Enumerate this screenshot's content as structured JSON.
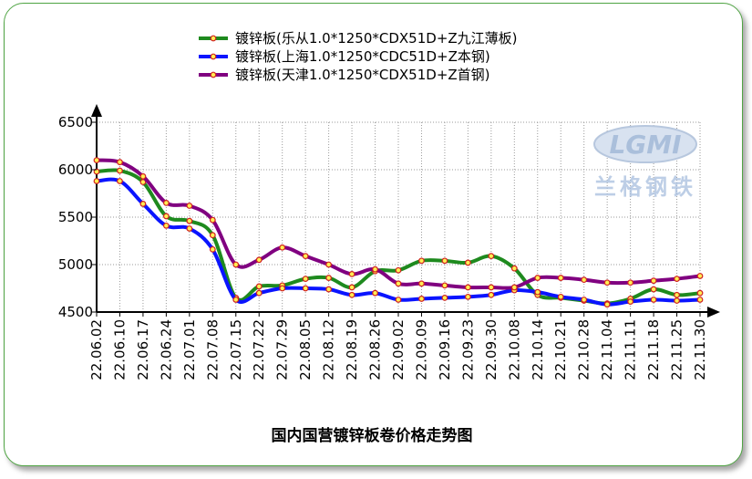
{
  "chart_data": {
    "type": "line",
    "title": "国内国营镀锌板卷价格走势图",
    "ylim": [
      4500,
      6500
    ],
    "yticks": [
      4500,
      5000,
      5500,
      6000,
      6500
    ],
    "grid": true,
    "legend_position": "top-center",
    "categories": [
      "22.06.02",
      "22.06.10",
      "22.06.17",
      "22.06.24",
      "22.07.01",
      "22.07.08",
      "22.07.15",
      "22.07.22",
      "22.07.29",
      "22.08.05",
      "22.08.12",
      "22.08.19",
      "22.08.26",
      "22.09.02",
      "22.09.09",
      "22.09.16",
      "22.09.23",
      "22.09.30",
      "22.10.08",
      "22.10.14",
      "22.10.21",
      "22.10.28",
      "22.11.04",
      "22.11.11",
      "22.11.18",
      "22.11.25",
      "22.11.30"
    ],
    "series": [
      {
        "name": "镀锌板(乐从1.0*1250*CDX51D+Z九江薄板)",
        "color": "#1e8a1e",
        "values": [
          5980,
          5990,
          5870,
          5510,
          5460,
          5310,
          4650,
          4770,
          4780,
          4850,
          4860,
          4760,
          4930,
          4940,
          5040,
          5040,
          5020,
          5090,
          4960,
          4680,
          4650,
          4620,
          4590,
          4640,
          4740,
          4680,
          4700
        ]
      },
      {
        "name": "镀锌板(上海1.0*1250*CDC51D+Z本钢)",
        "color": "#0a14ff",
        "values": [
          5880,
          5880,
          5640,
          5410,
          5380,
          5160,
          4630,
          4700,
          4750,
          4750,
          4740,
          4680,
          4700,
          4630,
          4640,
          4650,
          4660,
          4680,
          4730,
          4710,
          4660,
          4630,
          4580,
          4610,
          4630,
          4620,
          4630
        ]
      },
      {
        "name": "镀锌板(天津1.0*1250*CDX51D+Z首钢)",
        "color": "#800080",
        "values": [
          6100,
          6080,
          5930,
          5650,
          5620,
          5470,
          5000,
          5050,
          5180,
          5090,
          5000,
          4900,
          4950,
          4800,
          4800,
          4780,
          4760,
          4760,
          4760,
          4860,
          4860,
          4840,
          4810,
          4810,
          4830,
          4850,
          4880
        ]
      }
    ]
  },
  "watermark": {
    "logo_text": "LGMI",
    "brand_text": "兰格钢铁"
  }
}
